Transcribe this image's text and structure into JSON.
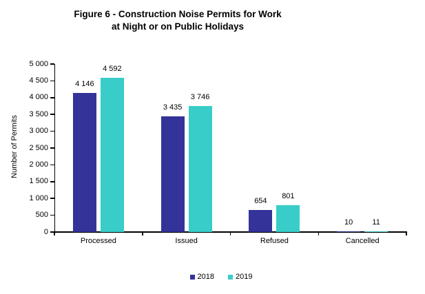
{
  "title": {
    "line1": "Figure 6 - Construction Noise Permits for Work",
    "line2": "at Night or on Public Holidays"
  },
  "chart_data": {
    "type": "bar",
    "categories": [
      "Processed",
      "Issued",
      "Refused",
      "Cancelled"
    ],
    "series": [
      {
        "name": "2018",
        "color": "#333399",
        "values": [
          4146,
          3435,
          654,
          10
        ],
        "labels": [
          "4 146",
          "3 435",
          "654",
          "10"
        ]
      },
      {
        "name": "2019",
        "color": "#38CDC9",
        "values": [
          4592,
          3746,
          801,
          11
        ],
        "labels": [
          "4 592",
          "3 746",
          "801",
          "11"
        ]
      }
    ],
    "ylabel": "Number of Permits",
    "xlabel": "",
    "ylim": [
      0,
      5000
    ],
    "ytick_step": 500,
    "ytick_labels": [
      "0",
      "500",
      "1 000",
      "1 500",
      "2 000",
      "2 500",
      "3 000",
      "3 500",
      "4 000",
      "4 500",
      "5 000"
    ],
    "grid": false,
    "legend_position": "bottom-center",
    "axis_color": "#000000"
  }
}
